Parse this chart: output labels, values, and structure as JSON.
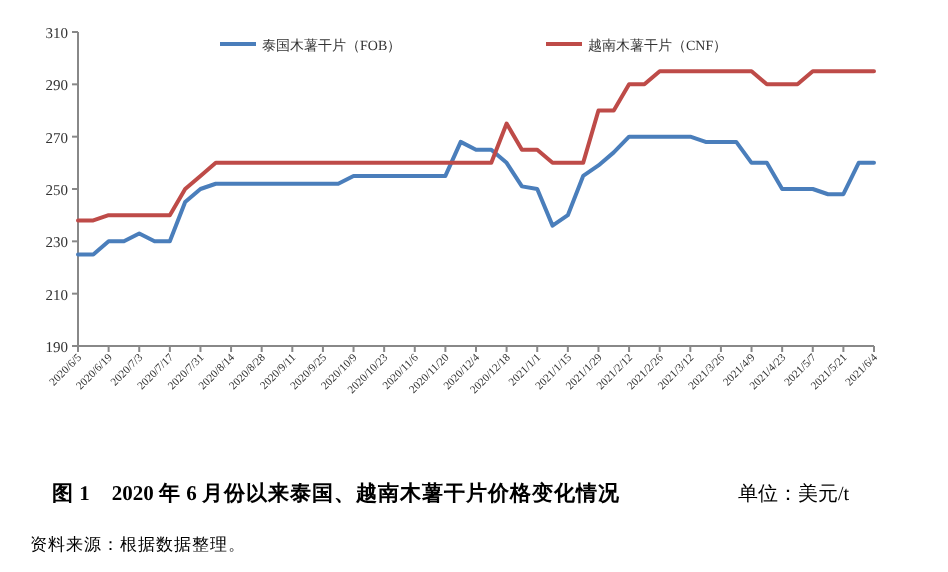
{
  "chart_data": {
    "type": "line",
    "title": "图 1　2020 年 6 月份以来泰国、越南木薯干片价格变化情况",
    "subtitle": "单位：美元/t",
    "annotations": [
      "资料来源：根据数据整理。"
    ],
    "categories": [
      "2020/6/5",
      null,
      "2020/6/19",
      null,
      "2020/7/3",
      null,
      "2020/7/17",
      null,
      "2020/7/31",
      null,
      "2020/8/14",
      null,
      "2020/8/28",
      null,
      "2020/9/11",
      null,
      "2020/9/25",
      null,
      "2020/10/9",
      null,
      "2020/10/23",
      null,
      "2020/11/6",
      null,
      "2020/11/20",
      null,
      "2020/12/4",
      null,
      "2020/12/18",
      null,
      "2021/1/1",
      null,
      "2021/1/15",
      null,
      "2021/1/29",
      null,
      "2021/2/12",
      null,
      "2021/2/26",
      null,
      "2021/3/12",
      null,
      "2021/3/26",
      null,
      "2021/4/9",
      null,
      "2021/4/23",
      null,
      "2021/5/7",
      null,
      "2021/5/21",
      null,
      "2021/6/4"
    ],
    "series": [
      {
        "name": "泰国木薯干片（FOB）",
        "color": "#4a7ebb",
        "values": [
          225,
          225,
          230,
          230,
          233,
          230,
          230,
          245,
          250,
          252,
          252,
          252,
          252,
          252,
          252,
          252,
          252,
          252,
          255,
          255,
          255,
          255,
          255,
          255,
          255,
          268,
          265,
          265,
          260,
          251,
          250,
          236,
          240,
          255,
          259,
          264,
          270,
          270,
          270,
          270,
          270,
          268,
          268,
          268,
          260,
          260,
          250,
          250,
          250,
          248,
          248,
          260,
          260
        ]
      },
      {
        "name": "越南木薯干片（CNF）",
        "color": "#be4b48",
        "values": [
          238,
          238,
          240,
          240,
          240,
          240,
          240,
          250,
          255,
          260,
          260,
          260,
          260,
          260,
          260,
          260,
          260,
          260,
          260,
          260,
          260,
          260,
          260,
          260,
          260,
          260,
          260,
          260,
          275,
          265,
          265,
          260,
          260,
          260,
          280,
          280,
          290,
          290,
          295,
          295,
          295,
          295,
          295,
          295,
          295,
          290,
          290,
          290,
          295,
          295,
          295,
          295,
          295
        ]
      }
    ],
    "ylim": [
      190,
      310
    ],
    "yticks": [
      190,
      210,
      230,
      250,
      270,
      290,
      310
    ],
    "legend": "top",
    "grid": false,
    "marker": "none",
    "line_style": "solid"
  }
}
